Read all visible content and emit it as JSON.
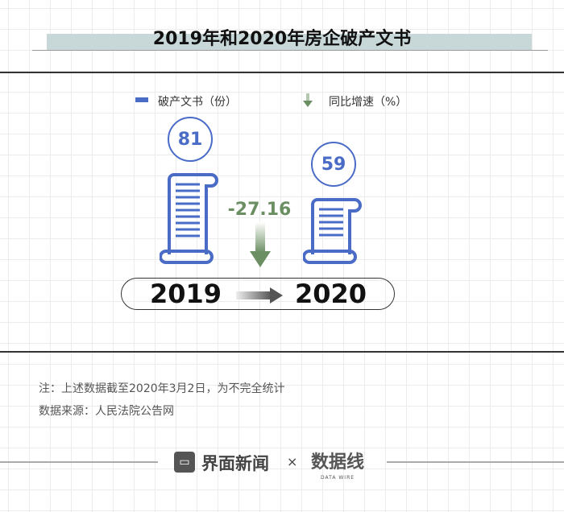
{
  "title": "2019年和2020年房企破产文书",
  "legend": {
    "bar_label": "破产文书（份）",
    "change_label": "同比增速（%）",
    "bar_color": "#4a6cc7",
    "change_color": "#6b8f63",
    "change_icon": "arrow-down-icon"
  },
  "chart_data": {
    "type": "pictorial-bar",
    "categories": [
      "2019",
      "2020"
    ],
    "series": [
      {
        "name": "破产文书（份）",
        "values": [
          81,
          59
        ]
      }
    ],
    "change": {
      "name": "同比增速（%）",
      "value": "-27.16"
    },
    "value_labels": [
      "81",
      "59"
    ]
  },
  "notes": {
    "note": "注：上述数据截至2020年3月2日，为不完全统计",
    "source": "数据来源：人民法院公告网"
  },
  "footer": {
    "brand": "界面新闻",
    "times": "×",
    "partner": "数据线",
    "partner_sub": "DATA WIRE"
  }
}
